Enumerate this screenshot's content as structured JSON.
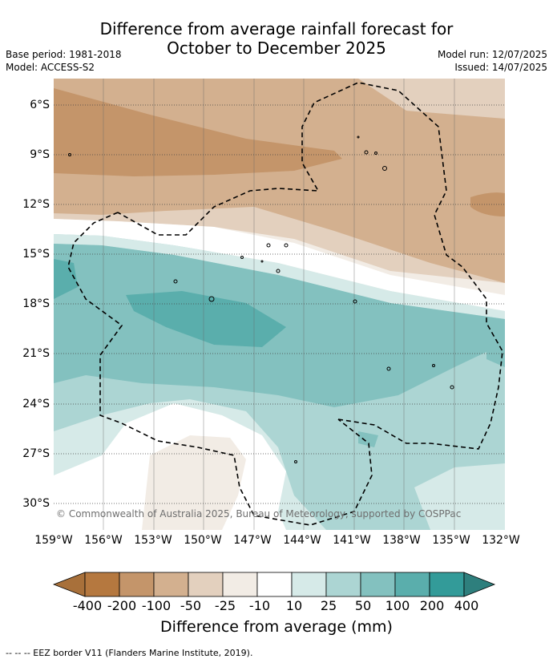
{
  "title_line1": "Difference from average rainfall forecast for",
  "title_line2": "October to December 2025",
  "base_period": "Base period: 1981-2018",
  "model": "Model: ACCESS-S2",
  "model_run": "Model run: 12/07/2025",
  "issued": "Issued: 14/07/2025",
  "copyright": "© Commonwealth of Australia 2025, Bureau of Meteorology, supported by COSPPac",
  "lat_labels": [
    "6°S",
    "9°S",
    "12°S",
    "15°S",
    "18°S",
    "21°S",
    "24°S",
    "27°S",
    "30°S"
  ],
  "lon_labels": [
    "159°W",
    "156°W",
    "153°W",
    "150°W",
    "147°W",
    "144°W",
    "141°W",
    "138°W",
    "135°W",
    "132°W"
  ],
  "colorbar": {
    "title": "Difference from average (mm)",
    "tick_labels": [
      "-400",
      "-200",
      "-100",
      "-50",
      "-25",
      "-10",
      "10",
      "25",
      "50",
      "100",
      "200",
      "400"
    ],
    "colors": [
      "#a8703a",
      "#b5783f",
      "#c4956a",
      "#d3b08f",
      "#e3d0be",
      "#f2ece5",
      "#ffffff",
      "#d6eae8",
      "#acd5d3",
      "#83c1bf",
      "#5aaeac",
      "#339b99",
      "#2e7f7d"
    ]
  },
  "legend_note": "-- -- -- EEZ border V11 (Flanders Marine Institute, 2019).",
  "map_extent": {
    "lon_min": -159,
    "lon_max": -132,
    "lat_min": -31,
    "lat_max": -4
  }
}
